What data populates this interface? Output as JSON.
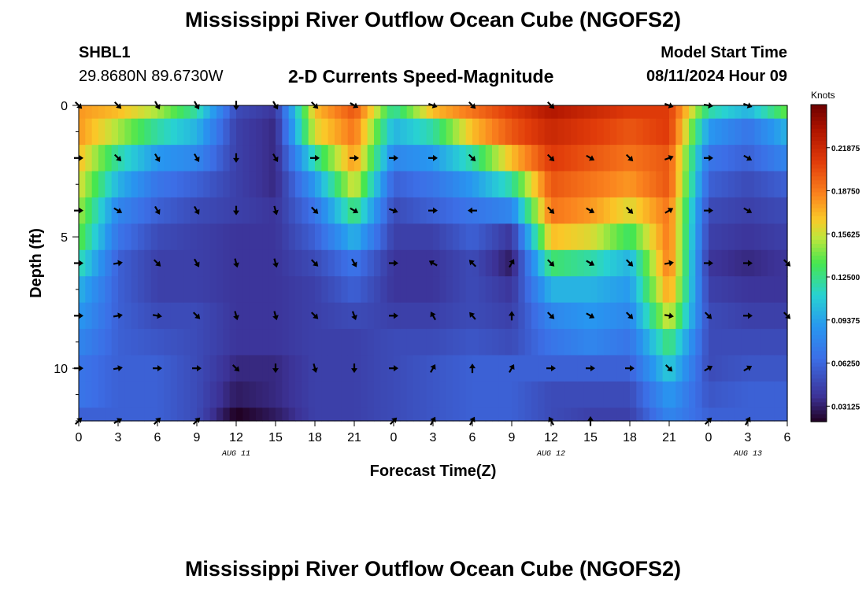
{
  "header": {
    "title": "Mississippi River Outflow Ocean Cube (NGOFS2)",
    "station": "SHBL1",
    "coordinates": "29.8680N  89.6730W",
    "subtitle": "2-D Currents Speed-Magnitude",
    "model_start_label": "Model Start Time",
    "model_start_value": "08/11/2024 Hour 09"
  },
  "footer": {
    "title": "Mississippi River Outflow Ocean Cube (NGOFS2)"
  },
  "chart_data": {
    "type": "heatmap",
    "title": "2-D Currents Speed-Magnitude",
    "xlabel": "Forecast Time(Z)",
    "ylabel": "Depth (ft)",
    "x_ticks": [
      "0",
      "3",
      "6",
      "9",
      "12",
      "15",
      "18",
      "21",
      "0",
      "3",
      "6",
      "9",
      "12",
      "15",
      "18",
      "21",
      "0",
      "3",
      "6"
    ],
    "x_hours": [
      0,
      54
    ],
    "y_ticks": [
      0,
      5,
      10
    ],
    "ylim": [
      0,
      12
    ],
    "date_labels": [
      {
        "label": "AUG 11",
        "hour": 12
      },
      {
        "label": "AUG 12",
        "hour": 36
      },
      {
        "label": "AUG 13",
        "hour": 51
      }
    ],
    "colorbar": {
      "label": "Knots",
      "range": [
        0.02,
        0.25
      ],
      "ticks": [
        "0.03125",
        "0.06250",
        "0.09375",
        "0.12500",
        "0.15625",
        "0.18750",
        "0.21875"
      ],
      "tick_values": [
        0.03125,
        0.0625,
        0.09375,
        0.125,
        0.15625,
        0.1875,
        0.21875
      ]
    },
    "depth_rows": [
      0,
      1,
      2,
      3,
      4,
      5,
      6,
      7,
      8,
      9,
      10,
      11,
      12
    ],
    "time_keys": [
      {
        "hour": 0,
        "speeds": [
          0.18,
          0.18,
          0.17,
          0.16,
          0.15,
          0.14,
          0.12,
          0.1,
          0.09,
          0.08,
          0.07,
          0.07,
          0.06
        ]
      },
      {
        "hour": 3,
        "speeds": [
          0.17,
          0.15,
          0.12,
          0.1,
          0.08,
          0.07,
          0.06,
          0.06,
          0.06,
          0.06,
          0.06,
          0.06,
          0.06
        ]
      },
      {
        "hour": 6,
        "speeds": [
          0.15,
          0.12,
          0.09,
          0.07,
          0.06,
          0.05,
          0.045,
          0.045,
          0.05,
          0.055,
          0.06,
          0.06,
          0.06
        ]
      },
      {
        "hour": 9,
        "speeds": [
          0.12,
          0.1,
          0.08,
          0.06,
          0.05,
          0.045,
          0.045,
          0.045,
          0.05,
          0.05,
          0.05,
          0.05,
          0.05
        ]
      },
      {
        "hour": 12,
        "speeds": [
          0.05,
          0.045,
          0.045,
          0.045,
          0.045,
          0.04,
          0.04,
          0.04,
          0.04,
          0.04,
          0.035,
          0.03,
          0.02
        ]
      },
      {
        "hour": 15,
        "speeds": [
          0.04,
          0.035,
          0.035,
          0.035,
          0.04,
          0.04,
          0.04,
          0.04,
          0.04,
          0.04,
          0.035,
          0.035,
          0.03
        ]
      },
      {
        "hour": 18,
        "speeds": [
          0.17,
          0.16,
          0.12,
          0.09,
          0.07,
          0.06,
          0.05,
          0.045,
          0.045,
          0.045,
          0.045,
          0.045,
          0.045
        ]
      },
      {
        "hour": 21,
        "speeds": [
          0.2,
          0.19,
          0.18,
          0.16,
          0.13,
          0.1,
          0.07,
          0.06,
          0.05,
          0.045,
          0.045,
          0.045,
          0.045
        ]
      },
      {
        "hour": 24,
        "speeds": [
          0.12,
          0.1,
          0.08,
          0.06,
          0.05,
          0.045,
          0.04,
          0.04,
          0.045,
          0.05,
          0.05,
          0.05,
          0.05
        ]
      },
      {
        "hour": 27,
        "speeds": [
          0.17,
          0.12,
          0.09,
          0.07,
          0.06,
          0.045,
          0.04,
          0.04,
          0.045,
          0.05,
          0.055,
          0.055,
          0.055
        ]
      },
      {
        "hour": 30,
        "speeds": [
          0.19,
          0.17,
          0.12,
          0.09,
          0.07,
          0.06,
          0.05,
          0.05,
          0.05,
          0.055,
          0.06,
          0.06,
          0.06
        ]
      },
      {
        "hour": 33,
        "speeds": [
          0.21,
          0.2,
          0.17,
          0.12,
          0.08,
          0.04,
          0.03,
          0.04,
          0.045,
          0.05,
          0.06,
          0.06,
          0.06
        ]
      },
      {
        "hour": 36,
        "speeds": [
          0.23,
          0.22,
          0.21,
          0.2,
          0.19,
          0.17,
          0.13,
          0.1,
          0.08,
          0.07,
          0.06,
          0.05,
          0.05
        ]
      },
      {
        "hour": 39,
        "speeds": [
          0.22,
          0.21,
          0.2,
          0.19,
          0.18,
          0.16,
          0.12,
          0.1,
          0.09,
          0.08,
          0.06,
          0.05,
          0.045
        ]
      },
      {
        "hour": 42,
        "speeds": [
          0.21,
          0.2,
          0.19,
          0.18,
          0.16,
          0.13,
          0.1,
          0.09,
          0.08,
          0.07,
          0.06,
          0.05,
          0.045
        ]
      },
      {
        "hour": 45,
        "speeds": [
          0.21,
          0.21,
          0.2,
          0.2,
          0.19,
          0.19,
          0.19,
          0.18,
          0.16,
          0.13,
          0.11,
          0.09,
          0.08
        ]
      },
      {
        "hour": 48,
        "speeds": [
          0.12,
          0.09,
          0.07,
          0.06,
          0.05,
          0.045,
          0.04,
          0.045,
          0.05,
          0.05,
          0.05,
          0.055,
          0.06
        ]
      },
      {
        "hour": 51,
        "speeds": [
          0.1,
          0.07,
          0.06,
          0.05,
          0.045,
          0.04,
          0.035,
          0.04,
          0.045,
          0.05,
          0.055,
          0.06,
          0.06
        ]
      },
      {
        "hour": 54,
        "speeds": [
          0.14,
          0.1,
          0.08,
          0.06,
          0.05,
          0.045,
          0.04,
          0.04,
          0.045,
          0.05,
          0.055,
          0.06,
          0.06
        ]
      }
    ],
    "vector_depths": [
      0,
      2,
      4,
      6,
      8,
      10,
      12
    ],
    "vectors": [
      {
        "hour": 0,
        "dirs": [
          135,
          90,
          90,
          90,
          90,
          90,
          45
        ]
      },
      {
        "hour": 3,
        "dirs": [
          135,
          135,
          120,
          80,
          80,
          80,
          60
        ]
      },
      {
        "hour": 6,
        "dirs": [
          150,
          150,
          150,
          135,
          100,
          90,
          45
        ]
      },
      {
        "hour": 9,
        "dirs": [
          150,
          150,
          150,
          150,
          135,
          90,
          45
        ]
      },
      {
        "hour": 12,
        "dirs": [
          180,
          180,
          180,
          165,
          165,
          135,
          null
        ]
      },
      {
        "hour": 15,
        "dirs": [
          150,
          150,
          165,
          165,
          165,
          180,
          null
        ]
      },
      {
        "hour": 18,
        "dirs": [
          135,
          90,
          135,
          135,
          135,
          165,
          null
        ]
      },
      {
        "hour": 21,
        "dirs": [
          120,
          90,
          120,
          150,
          160,
          180,
          null
        ]
      },
      {
        "hour": 24,
        "dirs": [
          null,
          90,
          110,
          90,
          90,
          90,
          45
        ]
      },
      {
        "hour": 27,
        "dirs": [
          110,
          90,
          90,
          300,
          330,
          30,
          30
        ]
      },
      {
        "hour": 30,
        "dirs": [
          135,
          135,
          270,
          315,
          320,
          0,
          30
        ]
      },
      {
        "hour": 33,
        "dirs": [
          null,
          null,
          null,
          30,
          0,
          30,
          null
        ]
      },
      {
        "hour": 36,
        "dirs": [
          135,
          135,
          135,
          135,
          135,
          90,
          330
        ]
      },
      {
        "hour": 39,
        "dirs": [
          null,
          120,
          120,
          120,
          120,
          90,
          0
        ]
      },
      {
        "hour": 42,
        "dirs": [
          null,
          135,
          135,
          135,
          135,
          90,
          null
        ]
      },
      {
        "hour": 45,
        "dirs": [
          110,
          70,
          60,
          80,
          100,
          135,
          null
        ]
      },
      {
        "hour": 48,
        "dirs": [
          100,
          90,
          90,
          90,
          135,
          60,
          45
        ]
      },
      {
        "hour": 51,
        "dirs": [
          110,
          120,
          120,
          90,
          90,
          60,
          30
        ]
      },
      {
        "hour": 54,
        "dirs": [
          null,
          null,
          null,
          135,
          135,
          null,
          null
        ]
      }
    ]
  }
}
